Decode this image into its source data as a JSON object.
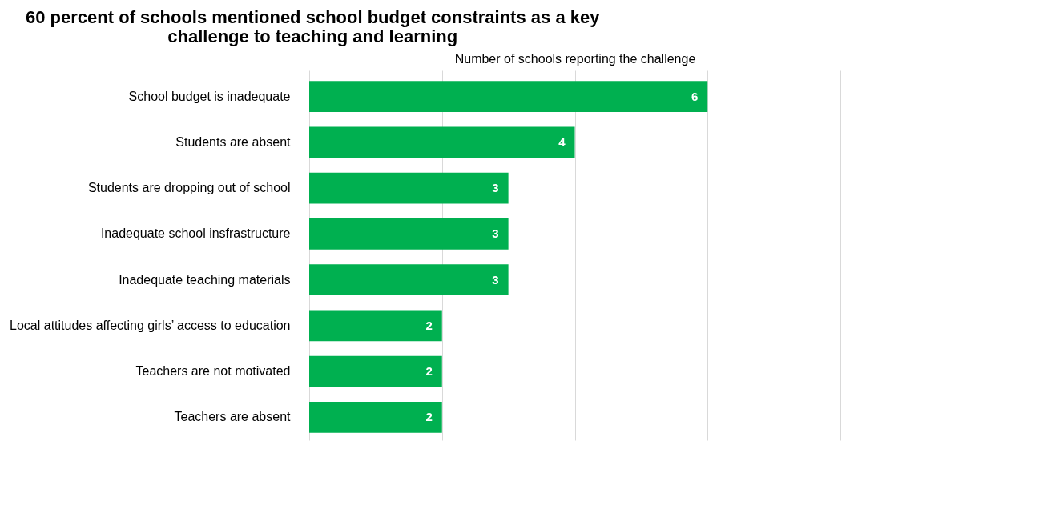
{
  "chart_data": {
    "type": "bar",
    "orientation": "horizontal",
    "title": "60 percent of schools mentioned school budget constraints as a key\nchallenge to teaching and learning",
    "xlabel": "Number of schools reporting the challenge",
    "categories": [
      "School budget is inadequate",
      "Students are absent",
      "Students are dropping out of school",
      "Inadequate school insfrastructure",
      "Inadequate teaching materials",
      "Local attitudes affecting\ngirls’ access to education",
      "Teachers are not motivated",
      "Teachers are absent"
    ],
    "values": [
      6,
      4,
      3,
      3,
      3,
      2,
      2,
      2
    ],
    "color": "#00b050",
    "xlim": [
      0,
      8
    ],
    "xticks": [
      {
        "value": 0,
        "label": null
      },
      {
        "value": 2,
        "label": null
      },
      {
        "value": 4,
        "label": null
      },
      {
        "value": 6,
        "label": null
      },
      {
        "value": 8,
        "label": null
      }
    ],
    "grid": "x",
    "tick_labels": "y",
    "data_labels": true
  }
}
